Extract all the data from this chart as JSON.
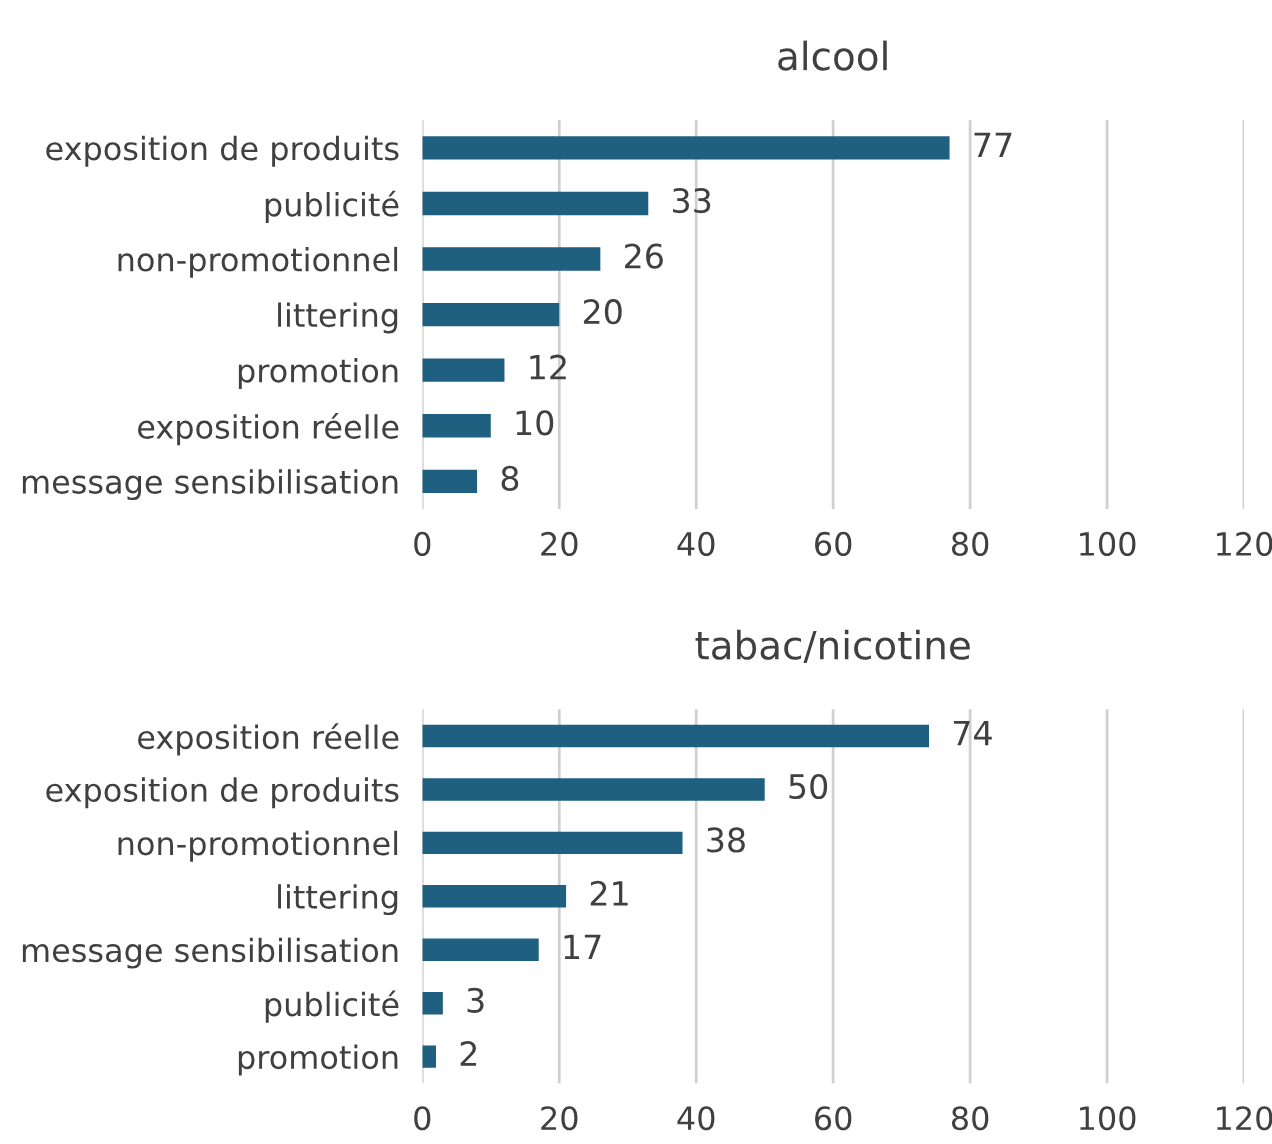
{
  "chart_data": [
    {
      "type": "bar",
      "title": "alcool",
      "orientation": "horizontal",
      "categories": [
        "exposition de produits",
        "publicité",
        "non-promotionnel",
        "littering",
        "promotion",
        "exposition réelle",
        "message sensibilisation"
      ],
      "values": [
        77,
        33,
        26,
        20,
        12,
        10,
        8
      ],
      "color": "#1f5f80",
      "xlim": [
        0,
        120
      ],
      "xticks": [
        0,
        20,
        40,
        60,
        80,
        100,
        120
      ],
      "grid": "x",
      "data_labels": true
    },
    {
      "type": "bar",
      "title": "tabac/nicotine",
      "orientation": "horizontal",
      "categories": [
        "exposition réelle",
        "exposition de produits",
        "non-promotionnel",
        "littering",
        "message sensibilisation",
        "publicité",
        "promotion"
      ],
      "values": [
        74,
        50,
        38,
        21,
        17,
        3,
        2
      ],
      "color": "#1f5f80",
      "xlim": [
        0,
        120
      ],
      "xticks": [
        0,
        20,
        40,
        60,
        80,
        100,
        120
      ],
      "grid": "x",
      "data_labels": true
    }
  ]
}
